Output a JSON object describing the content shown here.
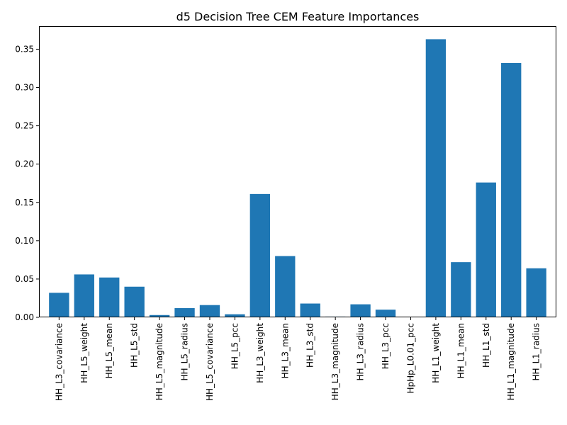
{
  "chart_data": {
    "type": "bar",
    "title": "d5 Decision Tree CEM Feature Importances",
    "xlabel": "",
    "ylabel": "",
    "ylim": [
      0,
      0.38
    ],
    "yticks": [
      "0.00",
      "0.05",
      "0.10",
      "0.15",
      "0.20",
      "0.25",
      "0.30",
      "0.35"
    ],
    "grid": false,
    "bar_color": "#1f77b4",
    "categories": [
      "HH_L3_covariance",
      "HH_L5_weight",
      "HH_L5_mean",
      "HH_L5_std",
      "HH_L5_magnitude",
      "HH_L5_radius",
      "HH_L5_covariance",
      "HH_L5_pcc",
      "HH_L3_weight",
      "HH_L3_mean",
      "HH_L3_std",
      "HH_L3_magnitude",
      "HH_L3_radius",
      "HH_L3_pcc",
      "HpHp_L0.01_pcc",
      "HH_L1_weight",
      "HH_L1_mean",
      "HH_L1_std",
      "HH_L1_magnitude",
      "HH_L1_radius"
    ],
    "values": [
      0.032,
      0.056,
      0.052,
      0.04,
      0.003,
      0.012,
      0.016,
      0.004,
      0.161,
      0.08,
      0.018,
      0.001,
      0.017,
      0.01,
      0.0,
      0.363,
      0.072,
      0.176,
      0.332,
      0.064
    ]
  }
}
